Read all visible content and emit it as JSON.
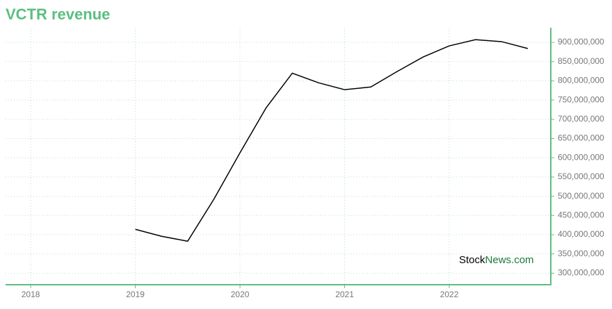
{
  "chart_data": {
    "type": "line",
    "title": "VCTR revenue",
    "watermark": {
      "first": "Stock",
      "second": "News.com"
    },
    "x": [
      2019,
      2019.25,
      2019.5,
      2019.75,
      2020,
      2020.25,
      2020.5,
      2020.75,
      2021,
      2021.25,
      2021.5,
      2021.75,
      2022,
      2022.25,
      2022.5,
      2022.75
    ],
    "series": [
      {
        "color": "#000000",
        "values": [
          414000000,
          396000000,
          383000000,
          492000000,
          613000000,
          730000000,
          820000000,
          795000000,
          777000000,
          784000000,
          824000000,
          862000000,
          891000000,
          907000000,
          902000000,
          884000000
        ]
      }
    ],
    "xlim": [
      2017.76,
      2022.97
    ],
    "xticks": [
      2018,
      2019,
      2020,
      2021,
      2022
    ],
    "ylim": [
      270000000,
      938000000
    ],
    "yticks": [
      {
        "value": 300000000,
        "label": "300,000,000"
      },
      {
        "value": 350000000,
        "label": "350,000,000"
      },
      {
        "value": 400000000,
        "label": "400,000,000"
      },
      {
        "value": 450000000,
        "label": "450,000,000"
      },
      {
        "value": 500000000,
        "label": "500,000,000"
      },
      {
        "value": 550000000,
        "label": "550,000,000"
      },
      {
        "value": 600000000,
        "label": "600,000,000"
      },
      {
        "value": 650000000,
        "label": "650,000,000"
      },
      {
        "value": 700000000,
        "label": "700,000,000"
      },
      {
        "value": 750000000,
        "label": "750,000,000"
      },
      {
        "value": 800000000,
        "label": "800,000,000"
      },
      {
        "value": 850000000,
        "label": "850,000,000"
      },
      {
        "value": 900000000,
        "label": "900,000,000"
      }
    ],
    "grid": true,
    "axis_color": "#5bbf7f"
  }
}
